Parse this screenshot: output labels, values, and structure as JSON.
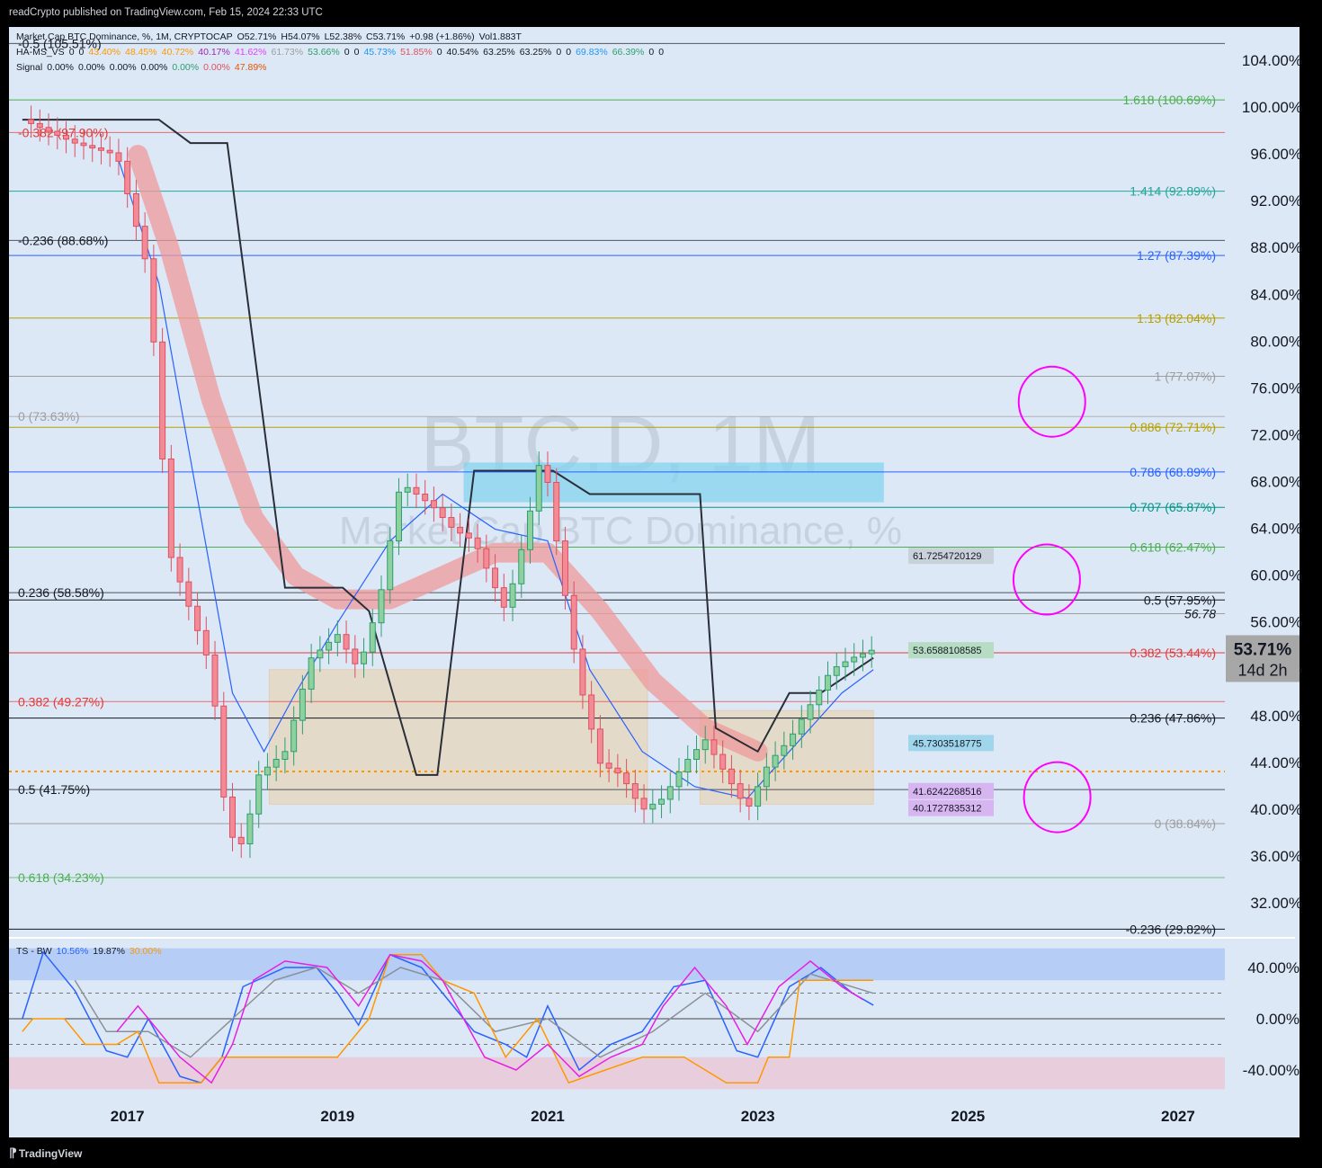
{
  "header": {
    "publisher_line": "readCrypto published on TradingView.com, Feb 15, 2024 22:33 UTC"
  },
  "footer": {
    "brand": "TradingView"
  },
  "colors": {
    "background": "#000000",
    "panel": "#dce8f6",
    "up": "#2e9e6e",
    "down": "#e04f5f",
    "ma_band": "#ef9a9a",
    "magenta": "#ff00ff",
    "orange": "#ff9800"
  },
  "legend": {
    "main": [
      "Market Cap BTC Dominance, %, 1M, CRYPTOCAP",
      "O52.71%",
      "H54.07%",
      "L52.38%",
      "C53.71%",
      "+0.98 (+1.86%)",
      "Vol1.883T"
    ],
    "ha_ms": [
      "HA-MS_VS",
      "0",
      "0",
      "43.40%",
      "48.45%",
      "40.72%",
      "40.17%",
      "41.62%",
      "61.73%",
      "53.66%",
      "0",
      "0",
      "45.73%",
      "51.85%",
      "0",
      "40.54%",
      "63.25%",
      "63.25%",
      "0",
      "0",
      "69.83%",
      "66.39%",
      "0",
      "0"
    ],
    "ha_ms_colors": [
      "#131722",
      "#131722",
      "#131722",
      "#ff9800",
      "#ff9800",
      "#ff9800",
      "#9c27b0",
      "#e040fb",
      "#9e9e9e",
      "#2e9e6e",
      "#131722",
      "#131722",
      "#2196f3",
      "#e04f5f",
      "#131722",
      "#131722",
      "#131722",
      "#131722",
      "#131722",
      "#131722",
      "#2196f3",
      "#2e9e6e",
      "#131722",
      "#131722"
    ],
    "signal": [
      "Signal",
      "0.00%",
      "0.00%",
      "0.00%",
      "0.00%",
      "0.00%",
      "0.00%",
      "47.89%"
    ],
    "signal_colors": [
      "#131722",
      "#131722",
      "#131722",
      "#131722",
      "#131722",
      "#2e9e6e",
      "#e04f5f",
      "#e65100"
    ],
    "ts_bw": [
      "TS - BW",
      "10.56%",
      "19.87%",
      "30.00%"
    ],
    "ts_bw_colors": [
      "#131722",
      "#2962ff",
      "#131722",
      "#ff9800"
    ]
  },
  "watermark": {
    "symbol": "BTC.D, 1M",
    "name": "Market Cap BTC Dominance, %"
  },
  "chart_data": [
    {
      "type": "candlestick",
      "title": "Market Cap BTC Dominance, %, 1M, CRYPTOCAP",
      "ylim": [
        29,
        107
      ],
      "y_ticks": [
        "104.00%",
        "100.00%",
        "96.00%",
        "92.00%",
        "88.00%",
        "84.00%",
        "80.00%",
        "76.00%",
        "72.00%",
        "68.00%",
        "64.00%",
        "60.00%",
        "56.00%",
        "52.00%",
        "48.00%",
        "44.00%",
        "40.00%",
        "36.00%",
        "32.00%"
      ],
      "x_ticks": [
        "2017",
        "2019",
        "2021",
        "2023",
        "2025",
        "2027"
      ],
      "x_tick_years": [
        2017,
        2019,
        2021,
        2023,
        2025,
        2027
      ],
      "last_price": {
        "value": 53.71,
        "label": "53.71%",
        "countdown": "14d 2h"
      },
      "close_path": [
        [
          2016.0,
          99
        ],
        [
          2016.5,
          97
        ],
        [
          2016.9,
          96
        ],
        [
          2017.2,
          86
        ],
        [
          2017.4,
          62
        ],
        [
          2017.6,
          57
        ],
        [
          2017.8,
          52
        ],
        [
          2017.95,
          38
        ],
        [
          2018.1,
          37
        ],
        [
          2018.25,
          43
        ],
        [
          2018.5,
          45
        ],
        [
          2018.75,
          53
        ],
        [
          2019.0,
          55
        ],
        [
          2019.2,
          52
        ],
        [
          2019.4,
          58
        ],
        [
          2019.6,
          68
        ],
        [
          2019.75,
          67
        ],
        [
          2019.9,
          66
        ],
        [
          2020.1,
          64
        ],
        [
          2020.3,
          63
        ],
        [
          2020.6,
          57
        ],
        [
          2020.8,
          64
        ],
        [
          2020.95,
          71
        ],
        [
          2021.1,
          62
        ],
        [
          2021.3,
          51
        ],
        [
          2021.5,
          44
        ],
        [
          2021.7,
          43
        ],
        [
          2021.9,
          40
        ],
        [
          2022.1,
          41
        ],
        [
          2022.3,
          44
        ],
        [
          2022.5,
          46
        ],
        [
          2022.7,
          43
        ],
        [
          2022.9,
          40
        ],
        [
          2023.1,
          44
        ],
        [
          2023.3,
          46
        ],
        [
          2023.5,
          49
        ],
        [
          2023.7,
          52
        ],
        [
          2023.9,
          53
        ],
        [
          2024.1,
          53.71
        ]
      ],
      "ma_band_path": [
        [
          2017.1,
          96
        ],
        [
          2017.4,
          88
        ],
        [
          2017.8,
          75
        ],
        [
          2018.2,
          65
        ],
        [
          2018.6,
          60
        ],
        [
          2019.0,
          58
        ],
        [
          2019.5,
          58
        ],
        [
          2020.0,
          60
        ],
        [
          2020.5,
          62
        ],
        [
          2021.0,
          62
        ],
        [
          2021.5,
          57
        ],
        [
          2022.0,
          51
        ],
        [
          2022.5,
          47
        ],
        [
          2023.0,
          45
        ]
      ],
      "blue_ma_path": [
        [
          2016.9,
          96
        ],
        [
          2017.3,
          85
        ],
        [
          2017.7,
          65
        ],
        [
          2018.0,
          50
        ],
        [
          2018.3,
          45
        ],
        [
          2018.6,
          50
        ],
        [
          2019.0,
          56
        ],
        [
          2019.5,
          63
        ],
        [
          2020.0,
          67
        ],
        [
          2020.5,
          64
        ],
        [
          2021.0,
          63
        ],
        [
          2021.4,
          52
        ],
        [
          2021.9,
          45
        ],
        [
          2022.4,
          42
        ],
        [
          2022.9,
          41
        ],
        [
          2023.3,
          45
        ],
        [
          2023.8,
          50
        ],
        [
          2024.1,
          52
        ]
      ],
      "black_line_path": [
        [
          2016.0,
          99
        ],
        [
          2017.3,
          99
        ],
        [
          2017.6,
          97
        ],
        [
          2017.95,
          97
        ],
        [
          2018.5,
          59
        ],
        [
          2018.8,
          59
        ],
        [
          2019.05,
          59
        ],
        [
          2019.3,
          57
        ],
        [
          2019.75,
          43
        ],
        [
          2019.95,
          43
        ],
        [
          2020.3,
          69
        ],
        [
          2020.9,
          69
        ],
        [
          2021.05,
          69
        ],
        [
          2021.4,
          67
        ],
        [
          2022.0,
          67
        ],
        [
          2022.45,
          67
        ],
        [
          2022.6,
          47
        ],
        [
          2023.0,
          45
        ],
        [
          2023.3,
          50
        ],
        [
          2023.6,
          50
        ],
        [
          2024.1,
          53
        ]
      ],
      "fib_levels_right": [
        {
          "label": "1.618 (100.69%)",
          "value": 100.69,
          "color": "#4caf50"
        },
        {
          "label": "1.414 (92.89%)",
          "value": 92.89,
          "color": "#26a69a"
        },
        {
          "label": "1.27 (87.39%)",
          "value": 87.39,
          "color": "#2962ff"
        },
        {
          "label": "1.13 (82.04%)",
          "value": 82.04,
          "color": "#b7a000"
        },
        {
          "label": "1 (77.07%)",
          "value": 77.07,
          "color": "#9e9e9e"
        },
        {
          "label": "0.886 (72.71%)",
          "value": 72.71,
          "color": "#b7a000"
        },
        {
          "label": "0.786 (68.89%)",
          "value": 68.89,
          "color": "#2962ff"
        },
        {
          "label": "0.707 (65.87%)",
          "value": 65.87,
          "color": "#009688"
        },
        {
          "label": "0.618 (62.47%)",
          "value": 62.47,
          "color": "#4caf50"
        },
        {
          "label": "0.5 (57.95%)",
          "value": 57.95,
          "color": "#131722"
        },
        {
          "label": "0.382 (53.44%)",
          "value": 53.44,
          "color": "#e53935"
        },
        {
          "label": "0.236 (47.86%)",
          "value": 47.86,
          "color": "#131722"
        },
        {
          "label": "0 (38.84%)",
          "value": 38.84,
          "color": "#9e9e9e"
        },
        {
          "label": "-0.236 (29.82%)",
          "value": 29.82,
          "color": "#131722"
        }
      ],
      "fib_levels_left": [
        {
          "label": "-0.5 (105.51%)",
          "value": 105.51,
          "color": "#131722"
        },
        {
          "label": "-0.382 (97.90%)",
          "value": 97.9,
          "color": "#e53935"
        },
        {
          "label": "-0.236 (88.68%)",
          "value": 88.68,
          "color": "#131722"
        },
        {
          "label": "0 (73.63%)",
          "value": 73.63,
          "color": "#9e9e9e"
        },
        {
          "label": "0.236 (58.58%)",
          "value": 58.58,
          "color": "#131722"
        },
        {
          "label": "0.382 (49.27%)",
          "value": 49.27,
          "color": "#e53935"
        },
        {
          "label": "0.5 (41.75%)",
          "value": 41.75,
          "color": "#131722"
        },
        {
          "label": "0.618 (34.23%)",
          "value": 34.23,
          "color": "#4caf50"
        }
      ],
      "level_tags": [
        {
          "label": "61.7254720129",
          "value": 61.7254720129,
          "color": "#c9d1db"
        },
        {
          "label": "53.6588108585",
          "value": 53.6588108585,
          "color": "#b6dcc3"
        },
        {
          "label": "45.7303518775",
          "value": 45.7303518775,
          "color": "#9fd6ec"
        },
        {
          "label": "41.6242268516",
          "value": 41.6242268516,
          "color": "#d7b5f0"
        },
        {
          "label": "40.1727835312",
          "value": 40.1727835312,
          "color": "#d7b5f0"
        }
      ],
      "extra_level": {
        "label": "56.78",
        "value": 56.78
      },
      "target_circles": [
        {
          "x": 2025.8,
          "y": 74.9
        },
        {
          "x": 2025.75,
          "y": 59.7
        },
        {
          "x": 2025.85,
          "y": 41.1
        }
      ]
    },
    {
      "type": "line",
      "title": "TS - BW",
      "ylim": [
        -55,
        55
      ],
      "y_ticks": [
        "40.00%",
        "0.00%",
        "-40.00%"
      ],
      "series": [
        {
          "name": "10.56%",
          "color": "#2962ff",
          "points": [
            [
              2016.0,
              0
            ],
            [
              2016.2,
              52
            ],
            [
              2016.5,
              22
            ],
            [
              2016.8,
              -25
            ],
            [
              2017.0,
              -30
            ],
            [
              2017.2,
              0
            ],
            [
              2017.5,
              -45
            ],
            [
              2017.7,
              -50
            ],
            [
              2017.9,
              -30
            ],
            [
              2018.1,
              25
            ],
            [
              2018.5,
              40
            ],
            [
              2018.8,
              40
            ],
            [
              2019.0,
              20
            ],
            [
              2019.2,
              -5
            ],
            [
              2019.5,
              50
            ],
            [
              2019.8,
              40
            ],
            [
              2020.0,
              20
            ],
            [
              2020.3,
              -10
            ],
            [
              2020.6,
              -20
            ],
            [
              2020.8,
              -30
            ],
            [
              2021.0,
              10
            ],
            [
              2021.3,
              -40
            ],
            [
              2021.6,
              -20
            ],
            [
              2021.9,
              -10
            ],
            [
              2022.2,
              25
            ],
            [
              2022.5,
              30
            ],
            [
              2022.8,
              -25
            ],
            [
              2023.0,
              -30
            ],
            [
              2023.3,
              25
            ],
            [
              2023.6,
              40
            ],
            [
              2023.9,
              20
            ],
            [
              2024.1,
              10.56
            ]
          ]
        },
        {
          "name": "19.87%",
          "color": "#8c9096",
          "points": [
            [
              2016.5,
              30
            ],
            [
              2016.8,
              -10
            ],
            [
              2017.2,
              -10
            ],
            [
              2017.6,
              -30
            ],
            [
              2018.0,
              0
            ],
            [
              2018.4,
              30
            ],
            [
              2018.8,
              40
            ],
            [
              2019.2,
              20
            ],
            [
              2019.6,
              40
            ],
            [
              2020.0,
              30
            ],
            [
              2020.5,
              -10
            ],
            [
              2021.0,
              0
            ],
            [
              2021.5,
              -30
            ],
            [
              2022.0,
              -10
            ],
            [
              2022.5,
              20
            ],
            [
              2023.0,
              -10
            ],
            [
              2023.5,
              35
            ],
            [
              2024.1,
              19.87
            ]
          ]
        },
        {
          "name": "30.00%",
          "color": "#ff9800",
          "points": [
            [
              2016.0,
              -10
            ],
            [
              2016.1,
              0
            ],
            [
              2016.4,
              0
            ],
            [
              2016.6,
              -20
            ],
            [
              2016.9,
              -20
            ],
            [
              2017.1,
              -10
            ],
            [
              2017.3,
              -50
            ],
            [
              2017.7,
              -50
            ],
            [
              2017.9,
              -30
            ],
            [
              2018.6,
              -30
            ],
            [
              2019.0,
              -30
            ],
            [
              2019.3,
              0
            ],
            [
              2019.5,
              50
            ],
            [
              2019.8,
              50
            ],
            [
              2020.0,
              30
            ],
            [
              2020.3,
              20
            ],
            [
              2020.6,
              -30
            ],
            [
              2020.9,
              0
            ],
            [
              2021.2,
              -50
            ],
            [
              2021.9,
              -30
            ],
            [
              2022.3,
              -30
            ],
            [
              2022.7,
              -50
            ],
            [
              2023.0,
              -50
            ],
            [
              2023.1,
              -30
            ],
            [
              2023.3,
              -30
            ],
            [
              2023.4,
              30
            ],
            [
              2024.1,
              30
            ]
          ]
        },
        {
          "name": "",
          "color": "#e91ee6",
          "points": [
            [
              2016.9,
              -10
            ],
            [
              2017.1,
              10
            ],
            [
              2017.5,
              -30
            ],
            [
              2017.8,
              -50
            ],
            [
              2018.0,
              -20
            ],
            [
              2018.2,
              30
            ],
            [
              2018.5,
              45
            ],
            [
              2018.9,
              40
            ],
            [
              2019.2,
              10
            ],
            [
              2019.5,
              50
            ],
            [
              2019.8,
              45
            ],
            [
              2020.0,
              30
            ],
            [
              2020.4,
              -30
            ],
            [
              2020.7,
              -40
            ],
            [
              2021.0,
              -20
            ],
            [
              2021.3,
              -45
            ],
            [
              2021.6,
              -30
            ],
            [
              2021.9,
              -20
            ],
            [
              2022.1,
              10
            ],
            [
              2022.4,
              40
            ],
            [
              2022.7,
              10
            ],
            [
              2022.9,
              -20
            ],
            [
              2023.2,
              25
            ],
            [
              2023.5,
              45
            ],
            [
              2023.8,
              25
            ],
            [
              2024.0,
              15
            ]
          ]
        }
      ]
    }
  ]
}
